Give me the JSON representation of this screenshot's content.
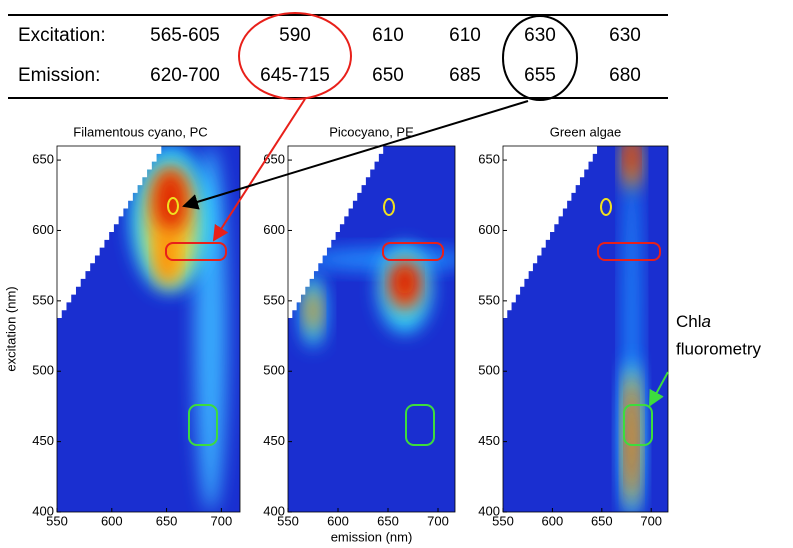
{
  "table": {
    "rows": [
      {
        "label": "Excitation:",
        "values": [
          "565-605",
          "590",
          "610",
          "610",
          "630",
          "630"
        ]
      },
      {
        "label": "Emission:",
        "values": [
          "620-700",
          "645-715",
          "650",
          "685",
          "655",
          "680"
        ]
      }
    ]
  },
  "chart_data": [
    {
      "type": "heatmap",
      "title": "Filamentous cyano, PC",
      "ylabel": "excitation (nm)",
      "xlim": [
        550,
        717
      ],
      "ylim": [
        400,
        660
      ],
      "xticks": [
        550,
        600,
        650,
        700
      ],
      "yticks": [
        400,
        450,
        500,
        550,
        600,
        650
      ]
    },
    {
      "type": "heatmap",
      "title": "Picocyano, PE",
      "xlabel": "emission (nm)",
      "xlim": [
        550,
        717
      ],
      "ylim": [
        400,
        660
      ],
      "xticks": [
        550,
        600,
        650,
        700
      ],
      "yticks": [
        400,
        450,
        500,
        550,
        600,
        650
      ]
    },
    {
      "type": "heatmap",
      "title": "Green algae",
      "xlim": [
        550,
        717
      ],
      "ylim": [
        400,
        660
      ],
      "xticks": [
        550,
        600,
        650,
        700
      ],
      "yticks": [
        400,
        450,
        500,
        550,
        600,
        650
      ]
    }
  ],
  "annotation": {
    "parts": [
      "Chl",
      "a",
      "fluorometry"
    ]
  }
}
